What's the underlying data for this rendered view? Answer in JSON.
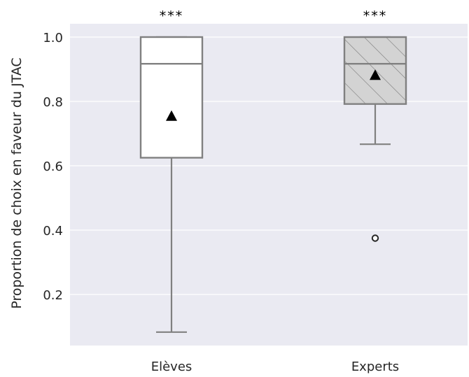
{
  "chart_data": {
    "type": "box",
    "title": "",
    "xlabel": "",
    "ylabel": "Proportion de choix en faveur du JTAC",
    "ylim": [
      0.04,
      1.05
    ],
    "yticks": [
      0.2,
      0.4,
      0.6,
      0.8,
      1.0
    ],
    "ytick_labels": [
      "0.2",
      "0.4",
      "0.6",
      "0.8",
      "1.0"
    ],
    "grid": true,
    "categories": [
      "Elèves",
      "Experts"
    ],
    "boxes": [
      {
        "category": "Elèves",
        "whisker_low": 0.083,
        "q1": 0.625,
        "median": 0.917,
        "q3": 1.0,
        "whisker_high": 1.0,
        "mean": 0.755,
        "outliers": [],
        "significance": "***",
        "fill": "#ffffff",
        "hatched": false
      },
      {
        "category": "Experts",
        "whisker_low": 0.667,
        "q1": 0.792,
        "median": 0.917,
        "q3": 1.0,
        "whisker_high": 1.0,
        "mean": 0.882,
        "outliers": [
          0.375
        ],
        "significance": "***",
        "fill": "#d3d3d3",
        "hatched": true
      }
    ],
    "colors": {
      "background": "#eaeaf2",
      "grid": "#ffffff",
      "box_edge": "#808080",
      "mean_marker": "#000000",
      "text": "#262626"
    }
  }
}
